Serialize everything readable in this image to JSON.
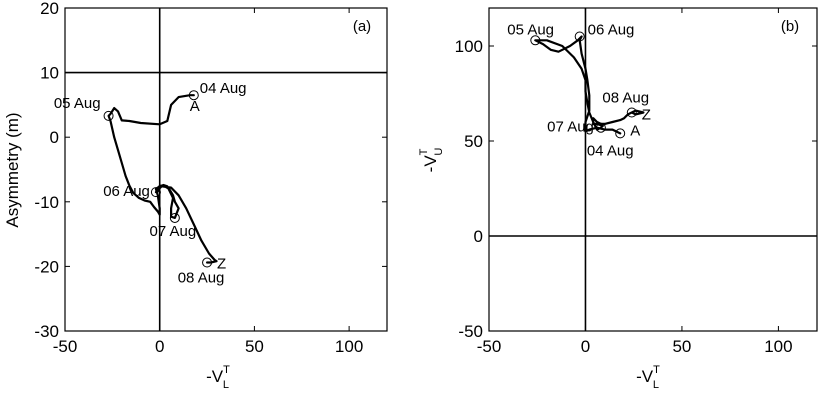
{
  "chart_data": [
    {
      "type": "line",
      "panel_label": "(a)",
      "xlabel": {
        "main": "-V",
        "sub": "L",
        "sup": "T"
      },
      "ylabel": {
        "main": "Asymmetry (m)"
      },
      "xlim": [
        -50,
        120
      ],
      "ylim": [
        -30,
        20
      ],
      "xticks": [
        -50,
        0,
        50,
        100
      ],
      "yticks": [
        -30,
        -20,
        -10,
        0,
        10,
        20
      ],
      "reference_lines": {
        "x": [
          0
        ],
        "y": [
          10
        ]
      },
      "series": [
        {
          "points": [
            [
              18,
              6.5
            ],
            [
              16,
              6.5
            ],
            [
              10,
              6.2
            ],
            [
              6,
              5
            ],
            [
              4,
              2.5
            ],
            [
              0,
              2
            ],
            [
              -10,
              2.2
            ],
            [
              -16,
              2.5
            ],
            [
              -20,
              2.6
            ],
            [
              -22,
              4
            ],
            [
              -24,
              4.5
            ],
            [
              -26,
              3.6
            ],
            [
              -27,
              3.3
            ],
            [
              -26,
              2.5
            ],
            [
              -24,
              0
            ],
            [
              -22,
              -2
            ],
            [
              -20,
              -4
            ],
            [
              -18,
              -6
            ],
            [
              -16,
              -7.5
            ],
            [
              -14,
              -8.6
            ],
            [
              -11,
              -9.4
            ],
            [
              -8,
              -9.8
            ],
            [
              -5,
              -10
            ],
            [
              -3,
              -10.8
            ],
            [
              -1,
              -11.5
            ],
            [
              0,
              -12
            ],
            [
              0,
              -11
            ],
            [
              -1,
              -9
            ],
            [
              -2,
              -8
            ],
            [
              -2,
              -8
            ],
            [
              0,
              -7.6
            ],
            [
              2,
              -7.4
            ],
            [
              4,
              -7.6
            ],
            [
              7,
              -9.4
            ],
            [
              6,
              -11
            ],
            [
              6,
              -12.3
            ],
            [
              8,
              -12.5
            ],
            [
              10,
              -11
            ],
            [
              8,
              -10
            ],
            [
              7,
              -9
            ],
            [
              5,
              -8
            ],
            [
              2,
              -7.5
            ],
            [
              0,
              -7.5
            ],
            [
              -1,
              -8.4
            ],
            [
              -2,
              -8.5
            ],
            [
              1,
              -7.6
            ],
            [
              6,
              -7.8
            ],
            [
              10,
              -9
            ],
            [
              14,
              -11
            ],
            [
              18,
              -13.5
            ],
            [
              22,
              -16
            ],
            [
              26,
              -18
            ],
            [
              29,
              -19
            ],
            [
              30,
              -19.2
            ],
            [
              27,
              -19.4
            ],
            [
              25,
              -19.4
            ]
          ]
        }
      ],
      "markers": [
        {
          "label": "04 Aug",
          "x": 18,
          "y": 6.5
        },
        {
          "label": "05 Aug",
          "x": -27,
          "y": 3.3
        },
        {
          "label": "06 Aug",
          "x": -2,
          "y": -8.5
        },
        {
          "label": "07 Aug",
          "x": 8,
          "y": -12.5
        },
        {
          "label": "08 Aug",
          "x": 25,
          "y": -19.4
        }
      ],
      "annotations": [
        {
          "text": "A",
          "x": 18,
          "y": 6.5
        },
        {
          "text": "Z",
          "x": 25,
          "y": -19.4
        }
      ]
    },
    {
      "type": "line",
      "panel_label": "(b)",
      "xlabel": {
        "main": "-V",
        "sub": "L",
        "sup": "T"
      },
      "ylabel": {
        "main": "-V",
        "sub": "U",
        "sup": "T"
      },
      "xlim": [
        -50,
        120
      ],
      "ylim": [
        -50,
        120
      ],
      "xticks": [
        -50,
        0,
        50,
        100
      ],
      "yticks": [
        -50,
        0,
        50,
        100
      ],
      "reference_lines": {
        "x": [
          0
        ],
        "y": [
          0
        ]
      },
      "series": [
        {
          "points": [
            [
              18,
              54
            ],
            [
              14,
              56
            ],
            [
              10,
              56
            ],
            [
              6,
              57
            ],
            [
              2,
              56
            ],
            [
              0,
              55
            ],
            [
              0,
              60
            ],
            [
              2,
              66
            ],
            [
              2,
              74
            ],
            [
              1,
              82
            ],
            [
              0,
              88
            ],
            [
              -2,
              96
            ],
            [
              -3,
              103
            ],
            [
              -2,
              105
            ],
            [
              -4,
              103
            ],
            [
              -8,
              100
            ],
            [
              -14,
              97
            ],
            [
              -18,
              98
            ],
            [
              -22,
              101
            ],
            [
              -26,
              103
            ],
            [
              -20,
              103
            ],
            [
              -12,
              100
            ],
            [
              -6,
              94
            ],
            [
              -2,
              88
            ],
            [
              0,
              82
            ],
            [
              0,
              76
            ],
            [
              1,
              70
            ],
            [
              2,
              65
            ],
            [
              4,
              60
            ],
            [
              6,
              56
            ],
            [
              8,
              57
            ],
            [
              9,
              58
            ],
            [
              6,
              59
            ],
            [
              4,
              59
            ],
            [
              4,
              62
            ],
            [
              6,
              60
            ],
            [
              8,
              59
            ],
            [
              10,
              59
            ],
            [
              14,
              60
            ],
            [
              18,
              61
            ],
            [
              20,
              62
            ],
            [
              22,
              64
            ],
            [
              26,
              66
            ],
            [
              30,
              65
            ],
            [
              26,
              64
            ],
            [
              24,
              65
            ]
          ]
        }
      ],
      "markers": [
        {
          "label": "04 Aug",
          "x": 18,
          "y": 54
        },
        {
          "label": "05 Aug",
          "x": -26,
          "y": 103
        },
        {
          "label": "06 Aug",
          "x": -3,
          "y": 105
        },
        {
          "label": "07 Aug",
          "x": 8,
          "y": 57
        },
        {
          "label": "08 Aug",
          "x": 24,
          "y": 65
        }
      ],
      "annotations": [
        {
          "text": "A",
          "x": 18,
          "y": 54
        },
        {
          "text": "Z",
          "x": 24,
          "y": 65
        }
      ]
    }
  ]
}
